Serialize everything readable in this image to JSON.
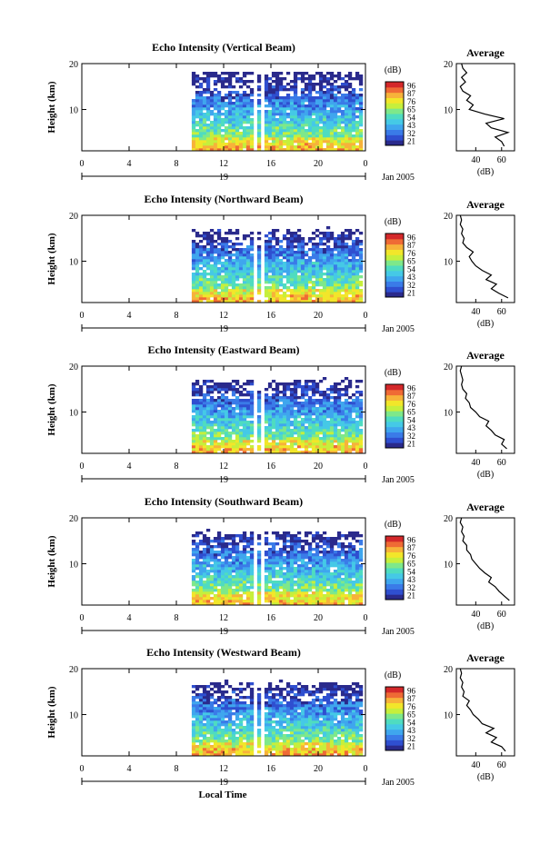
{
  "colors": {
    "colormap": [
      "#2a2a8c",
      "#2f4fd0",
      "#3a7be8",
      "#3fa6ee",
      "#45c9e6",
      "#4fdcc0",
      "#7ee88a",
      "#c6ef3c",
      "#f2e62a",
      "#f7b23a",
      "#ef6a35",
      "#d4282a"
    ]
  },
  "figure": {
    "xlabel": "Local Time",
    "day_label": "19",
    "month_label": "Jan 2005"
  },
  "chart_data": [
    {
      "type": "heatmap",
      "title": "Echo Intensity (Vertical Beam)",
      "ylabel": "Height (km)",
      "x_ticks": [
        "0",
        "4",
        "8",
        "12",
        "16",
        "20",
        "0"
      ],
      "y_ticks": [
        "20",
        "10"
      ],
      "xlim": [
        0,
        24
      ],
      "ylim": [
        1,
        20
      ],
      "data_coverage": {
        "start_hour": 9.3,
        "gaps": [
          [
            14.3,
            14.6
          ],
          [
            15.0,
            15.3
          ]
        ]
      },
      "colorbar": {
        "unit": "(dB)",
        "ticks": [
          "96",
          "87",
          "76",
          "65",
          "54",
          "43",
          "32",
          "21"
        ]
      },
      "profile": {
        "title": "Average",
        "xlabel": "(dB)",
        "x_ticks": [
          "40",
          "60"
        ],
        "y_ticks": [
          "20",
          "10"
        ],
        "xlim": [
          25,
          70
        ],
        "points": [
          [
            2,
            62
          ],
          [
            3,
            60
          ],
          [
            4,
            55
          ],
          [
            5,
            65
          ],
          [
            6,
            52
          ],
          [
            7,
            48
          ],
          [
            8,
            62
          ],
          [
            9,
            47
          ],
          [
            10,
            35
          ],
          [
            11,
            38
          ],
          [
            12,
            33
          ],
          [
            13,
            36
          ],
          [
            14,
            30
          ],
          [
            15,
            28
          ],
          [
            16,
            32
          ],
          [
            17,
            29
          ],
          [
            18,
            33
          ],
          [
            19,
            30
          ],
          [
            20,
            29
          ]
        ]
      }
    },
    {
      "type": "heatmap",
      "title": "Echo Intensity (Northward Beam)",
      "ylabel": "Height (km)",
      "x_ticks": [
        "0",
        "4",
        "8",
        "12",
        "16",
        "20",
        "0"
      ],
      "y_ticks": [
        "20",
        "10"
      ],
      "xlim": [
        0,
        24
      ],
      "ylim": [
        1,
        20
      ],
      "data_coverage": {
        "start_hour": 9.3,
        "gaps": [
          [
            14.3,
            14.6
          ],
          [
            15.0,
            15.3
          ]
        ]
      },
      "colorbar": {
        "unit": "(dB)",
        "ticks": [
          "96",
          "87",
          "76",
          "65",
          "54",
          "43",
          "32",
          "21"
        ]
      },
      "profile": {
        "title": "Average",
        "xlabel": "(dB)",
        "x_ticks": [
          "40",
          "60"
        ],
        "y_ticks": [
          "20",
          "10"
        ],
        "xlim": [
          25,
          70
        ],
        "points": [
          [
            2,
            65
          ],
          [
            3,
            58
          ],
          [
            4,
            52
          ],
          [
            5,
            56
          ],
          [
            6,
            48
          ],
          [
            7,
            52
          ],
          [
            8,
            45
          ],
          [
            9,
            40
          ],
          [
            10,
            37
          ],
          [
            11,
            35
          ],
          [
            12,
            38
          ],
          [
            13,
            33
          ],
          [
            14,
            30
          ],
          [
            15,
            31
          ],
          [
            16,
            29
          ],
          [
            17,
            30
          ],
          [
            18,
            28
          ],
          [
            19,
            29
          ],
          [
            20,
            28
          ]
        ]
      }
    },
    {
      "type": "heatmap",
      "title": "Echo Intensity (Eastward Beam)",
      "ylabel": "Height (km)",
      "x_ticks": [
        "0",
        "4",
        "8",
        "12",
        "16",
        "20",
        "0"
      ],
      "y_ticks": [
        "20",
        "10"
      ],
      "xlim": [
        0,
        24
      ],
      "ylim": [
        1,
        20
      ],
      "data_coverage": {
        "start_hour": 9.3,
        "gaps": [
          [
            14.3,
            14.6
          ],
          [
            15.0,
            15.3
          ]
        ]
      },
      "colorbar": {
        "unit": "(dB)",
        "ticks": [
          "96",
          "87",
          "76",
          "65",
          "54",
          "43",
          "32",
          "21"
        ]
      },
      "profile": {
        "title": "Average",
        "xlabel": "(dB)",
        "x_ticks": [
          "40",
          "60"
        ],
        "y_ticks": [
          "20",
          "10"
        ],
        "xlim": [
          25,
          70
        ],
        "points": [
          [
            2,
            64
          ],
          [
            3,
            60
          ],
          [
            4,
            62
          ],
          [
            5,
            55
          ],
          [
            6,
            52
          ],
          [
            7,
            48
          ],
          [
            8,
            50
          ],
          [
            9,
            43
          ],
          [
            10,
            40
          ],
          [
            11,
            36
          ],
          [
            12,
            35
          ],
          [
            13,
            32
          ],
          [
            14,
            33
          ],
          [
            15,
            30
          ],
          [
            16,
            29
          ],
          [
            17,
            30
          ],
          [
            18,
            29
          ],
          [
            19,
            28
          ],
          [
            20,
            29
          ]
        ]
      }
    },
    {
      "type": "heatmap",
      "title": "Echo Intensity (Southward Beam)",
      "ylabel": "Height (km)",
      "x_ticks": [
        "0",
        "4",
        "8",
        "12",
        "16",
        "20",
        "0"
      ],
      "y_ticks": [
        "20",
        "10"
      ],
      "xlim": [
        0,
        24
      ],
      "ylim": [
        1,
        20
      ],
      "data_coverage": {
        "start_hour": 9.3,
        "gaps": [
          [
            14.3,
            14.6
          ],
          [
            15.0,
            15.3
          ]
        ]
      },
      "colorbar": {
        "unit": "(dB)",
        "ticks": [
          "96",
          "87",
          "76",
          "65",
          "54",
          "43",
          "32",
          "21"
        ]
      },
      "profile": {
        "title": "Average",
        "xlabel": "(dB)",
        "x_ticks": [
          "40",
          "60"
        ],
        "y_ticks": [
          "20",
          "10"
        ],
        "xlim": [
          25,
          70
        ],
        "points": [
          [
            2,
            66
          ],
          [
            3,
            62
          ],
          [
            4,
            58
          ],
          [
            5,
            55
          ],
          [
            6,
            50
          ],
          [
            7,
            52
          ],
          [
            8,
            47
          ],
          [
            9,
            43
          ],
          [
            10,
            40
          ],
          [
            11,
            37
          ],
          [
            12,
            36
          ],
          [
            13,
            33
          ],
          [
            14,
            33
          ],
          [
            15,
            30
          ],
          [
            16,
            31
          ],
          [
            17,
            29
          ],
          [
            18,
            30
          ],
          [
            19,
            28
          ],
          [
            20,
            29
          ]
        ]
      }
    },
    {
      "type": "heatmap",
      "title": "Echo Intensity (Westward Beam)",
      "ylabel": "Height (km)",
      "x_ticks": [
        "0",
        "4",
        "8",
        "12",
        "16",
        "20",
        "0"
      ],
      "y_ticks": [
        "20",
        "10"
      ],
      "xlim": [
        0,
        24
      ],
      "ylim": [
        1,
        20
      ],
      "data_coverage": {
        "start_hour": 9.3,
        "gaps": [
          [
            14.3,
            14.6
          ],
          [
            15.0,
            15.3
          ]
        ]
      },
      "colorbar": {
        "unit": "(dB)",
        "ticks": [
          "96",
          "87",
          "76",
          "65",
          "54",
          "43",
          "32",
          "21"
        ]
      },
      "profile": {
        "title": "Average",
        "xlabel": "(dB)",
        "x_ticks": [
          "40",
          "60"
        ],
        "y_ticks": [
          "20",
          "10"
        ],
        "xlim": [
          25,
          70
        ],
        "points": [
          [
            2,
            63
          ],
          [
            3,
            60
          ],
          [
            4,
            52
          ],
          [
            5,
            56
          ],
          [
            6,
            48
          ],
          [
            7,
            54
          ],
          [
            8,
            45
          ],
          [
            9,
            42
          ],
          [
            10,
            38
          ],
          [
            11,
            36
          ],
          [
            12,
            33
          ],
          [
            13,
            35
          ],
          [
            14,
            30
          ],
          [
            15,
            31
          ],
          [
            16,
            29
          ],
          [
            17,
            30
          ],
          [
            18,
            28
          ],
          [
            19,
            29
          ],
          [
            20,
            28
          ]
        ]
      }
    }
  ]
}
